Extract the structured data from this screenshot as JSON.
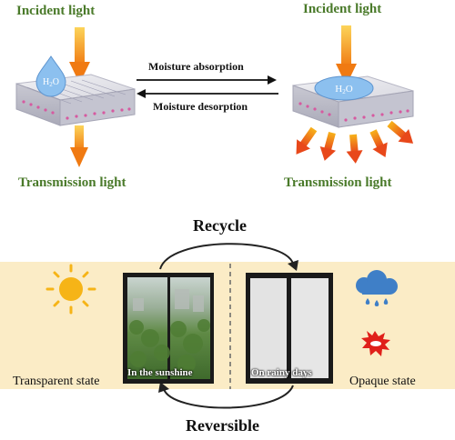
{
  "top": {
    "left_incident": "Incident light",
    "right_incident": "Incident  light",
    "left_transmission": "Transmission light",
    "right_transmission": "Transmission light",
    "absorption": "Moisture absorption",
    "desorption": "Moisture desorption",
    "left_droplet": "H2O",
    "right_droplet": "H2O"
  },
  "bottom": {
    "recycle": "Recycle",
    "reversible": "Reversible",
    "transparent_state": "Transparent state",
    "opaque_state": "Opaque state",
    "sunshine_caption": "In the sunshine",
    "rainy_caption": "On rainy days"
  },
  "colors": {
    "label_green": "#4a7a2a",
    "panel_bg": "#fbecc6",
    "arrow_orange": "#f39a1e",
    "sun": "#f6b417",
    "cloud": "#3f7fc7"
  }
}
